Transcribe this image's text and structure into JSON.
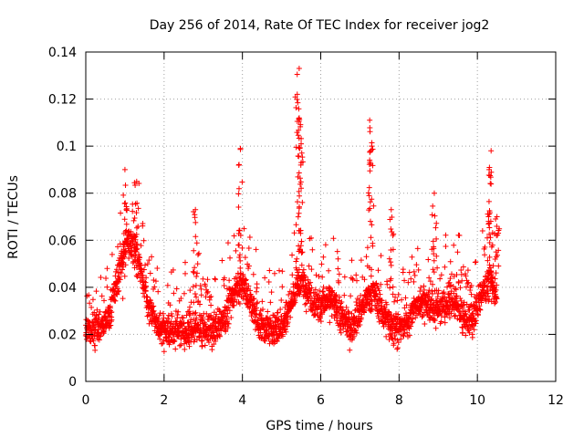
{
  "chart_data": {
    "type": "scatter",
    "title": "Day 256 of 2014, Rate Of TEC Index for receiver jog2",
    "xlabel": "GPS time / hours",
    "ylabel": "ROTI / TECUs",
    "xlim": [
      0,
      12
    ],
    "ylim": [
      0,
      0.14
    ],
    "xticks": [
      "0",
      "2",
      "4",
      "6",
      "8",
      "10",
      "12"
    ],
    "yticks": [
      "0",
      "0.02",
      "0.04",
      "0.06",
      "0.08",
      "0.1",
      "0.12",
      "0.14"
    ],
    "grid": true,
    "marker": "+",
    "series": [
      {
        "name": "ROTI",
        "color": "#ff0000",
        "x_range": [
          0,
          10.5
        ],
        "baseline": 0.022,
        "spikes": [
          {
            "x": 1.0,
            "y": 0.09
          },
          {
            "x": 1.3,
            "y": 0.085
          },
          {
            "x": 2.8,
            "y": 0.073
          },
          {
            "x": 3.95,
            "y": 0.099
          },
          {
            "x": 5.45,
            "y": 0.133
          },
          {
            "x": 5.4,
            "y": 0.122
          },
          {
            "x": 5.45,
            "y": 0.112
          },
          {
            "x": 5.5,
            "y": 0.101
          },
          {
            "x": 7.25,
            "y": 0.111
          },
          {
            "x": 7.3,
            "y": 0.1
          },
          {
            "x": 7.8,
            "y": 0.073
          },
          {
            "x": 8.9,
            "y": 0.08
          },
          {
            "x": 10.35,
            "y": 0.098
          },
          {
            "x": 10.3,
            "y": 0.09
          },
          {
            "x": 10.5,
            "y": 0.07
          }
        ]
      }
    ]
  }
}
